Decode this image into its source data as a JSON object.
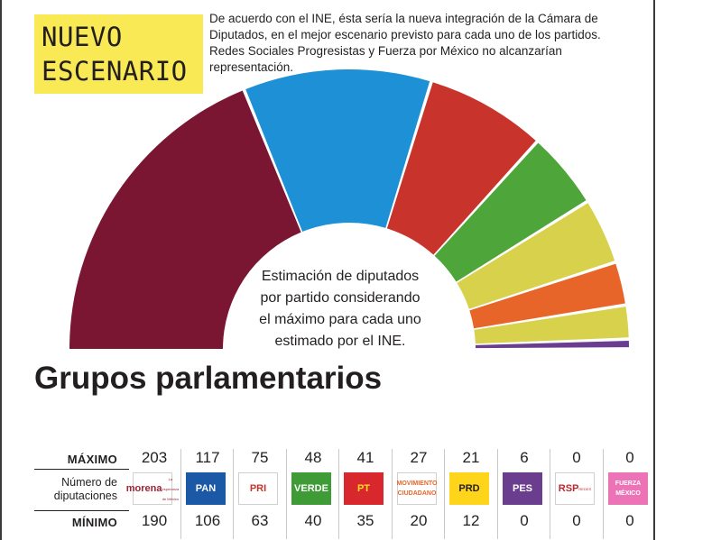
{
  "headline": {
    "line1": "NUEVO",
    "line2": "ESCENARIO"
  },
  "intro": "De acuerdo con el INE, ésta sería la nueva integración de la Cámara de Diputados, en el mejor escenario previsto para cada uno de los partidos. Redes Sociales Progresistas y Fuerza por México no alcanzarían representación.",
  "center_note": "Estimación de diputados por partido considerando el máximo para cada uno estimado por el INE.",
  "section_title": "Grupos parlamentarios",
  "row_labels": {
    "max": "MÁXIMO",
    "count": "Número de diputaciones",
    "min": "MÍNIMO"
  },
  "chart_data": {
    "type": "pie",
    "variant": "hemicycle",
    "categories": [
      "Morena",
      "PAN",
      "PRI",
      "Verde",
      "PT",
      "Movimiento Ciudadano",
      "PRD",
      "PES",
      "RSP",
      "Fuerza México"
    ],
    "values": [
      203,
      117,
      75,
      48,
      41,
      27,
      21,
      6,
      0,
      0
    ],
    "minimum": [
      190,
      106,
      63,
      40,
      35,
      20,
      12,
      0,
      0,
      0
    ],
    "colors": [
      "#7b1632",
      "#1e90d5",
      "#c8342c",
      "#4ea53a",
      "#d8d14c",
      "#e8652a",
      "#d8d14c",
      "#6a3d8f",
      "#c0272d",
      "#ec74b6"
    ]
  },
  "parties": [
    {
      "logo_text": "morena",
      "logo_sub": "La esperanza de México",
      "logo_bg": "#ffffff",
      "logo_fg": "#a02235",
      "icon": "morena-logo-icon"
    },
    {
      "logo_text": "PAN",
      "logo_bg": "#1b58a6",
      "logo_fg": "#ffffff",
      "icon": "pan-logo-icon"
    },
    {
      "logo_text": "PRI",
      "logo_bg": "#ffffff",
      "logo_fg": "#c8342c",
      "icon": "pri-logo-icon"
    },
    {
      "logo_text": "VERDE",
      "logo_bg": "#3f9b35",
      "logo_fg": "#ffffff",
      "icon": "verde-logo-icon"
    },
    {
      "logo_text": "PT",
      "logo_bg": "#d8282e",
      "logo_fg": "#ffde1a",
      "icon": "pt-logo-icon"
    },
    {
      "logo_text": "MOVIMIENTO CIUDADANO",
      "logo_bg": "#ffffff",
      "logo_fg": "#e8652a",
      "icon": "movimiento-ciudadano-logo-icon"
    },
    {
      "logo_text": "PRD",
      "logo_bg": "#ffd51c",
      "logo_fg": "#231f20",
      "icon": "prd-logo-icon"
    },
    {
      "logo_text": "PES",
      "logo_bg": "#6a3d8f",
      "logo_fg": "#ffffff",
      "icon": "pes-logo-icon"
    },
    {
      "logo_text": "RSP",
      "logo_sub": "REDES",
      "logo_bg": "#ffffff",
      "logo_fg": "#c0272d",
      "icon": "rsp-logo-icon"
    },
    {
      "logo_text": "FUERZA MÉXICO",
      "logo_bg": "#ec74b6",
      "logo_fg": "#ffffff",
      "icon": "fuerza-mexico-logo-icon"
    }
  ]
}
